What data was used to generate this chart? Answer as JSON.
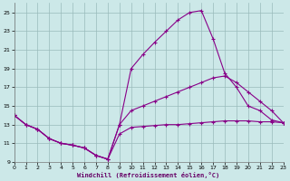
{
  "xlabel": "Windchill (Refroidissement éolien,°C)",
  "bg_color": "#cce8e8",
  "line_color": "#880088",
  "xlim": [
    0,
    23
  ],
  "ylim": [
    9,
    26
  ],
  "yticks": [
    9,
    11,
    13,
    15,
    17,
    19,
    21,
    23,
    25
  ],
  "xticks": [
    0,
    1,
    2,
    3,
    4,
    5,
    6,
    7,
    8,
    9,
    10,
    11,
    12,
    13,
    14,
    15,
    16,
    17,
    18,
    19,
    20,
    21,
    22,
    23
  ],
  "series": [
    {
      "x": [
        0,
        1,
        2,
        3,
        4,
        5,
        6,
        7,
        8,
        9,
        10,
        11,
        12,
        13,
        14,
        15,
        16,
        17,
        18,
        19,
        20,
        21,
        22,
        23
      ],
      "y": [
        14.0,
        13.0,
        12.5,
        11.5,
        11.0,
        10.8,
        10.5,
        9.7,
        9.3,
        13.0,
        19.0,
        20.5,
        21.8,
        23.0,
        24.2,
        25.0,
        25.2,
        22.2,
        18.5,
        17.0,
        15.0,
        14.5,
        13.5,
        13.2
      ]
    },
    {
      "x": [
        0,
        1,
        2,
        3,
        4,
        5,
        6,
        7,
        8,
        9,
        10,
        11,
        12,
        13,
        14,
        15,
        16,
        17,
        18,
        19,
        20,
        21,
        22,
        23
      ],
      "y": [
        14.0,
        13.0,
        12.5,
        11.5,
        11.0,
        10.8,
        10.5,
        9.7,
        9.3,
        13.0,
        14.5,
        15.0,
        15.5,
        16.0,
        16.5,
        17.0,
        17.5,
        18.0,
        18.2,
        17.5,
        16.5,
        15.5,
        14.5,
        13.2
      ]
    },
    {
      "x": [
        0,
        1,
        2,
        3,
        4,
        5,
        6,
        7,
        8,
        9,
        10,
        11,
        12,
        13,
        14,
        15,
        16,
        17,
        18,
        19,
        20,
        21,
        22,
        23
      ],
      "y": [
        14.0,
        13.0,
        12.5,
        11.5,
        11.0,
        10.8,
        10.5,
        9.7,
        9.3,
        12.0,
        12.7,
        12.8,
        12.9,
        13.0,
        13.0,
        13.1,
        13.2,
        13.3,
        13.4,
        13.4,
        13.4,
        13.3,
        13.3,
        13.2
      ]
    }
  ]
}
